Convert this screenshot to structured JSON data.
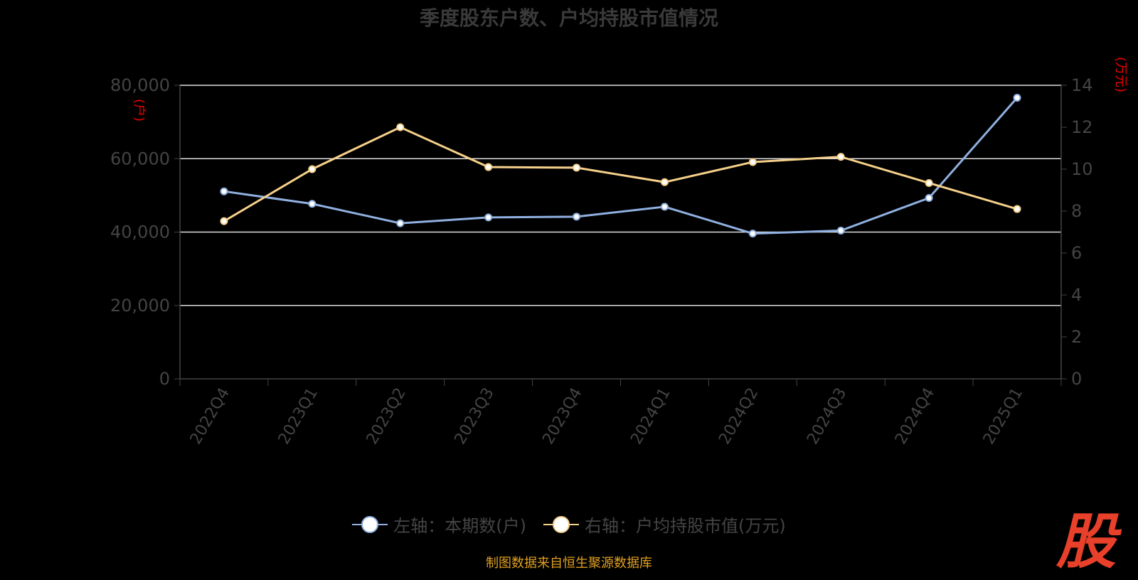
{
  "title": "季度股东户数、户均持股市值情况",
  "logo": "股",
  "source": "制图数据来自恒生聚源数据库",
  "legend": [
    {
      "label": "左轴：本期数(户)",
      "color": "#8fb0e0"
    },
    {
      "label": "右轴：户均持股市值(万元)",
      "color": "#f5d08a"
    }
  ],
  "chart_data": {
    "type": "line",
    "title": "季度股东户数、户均持股市值情况",
    "categories": [
      "2022Q4",
      "2023Q1",
      "2023Q2",
      "2023Q3",
      "2023Q4",
      "2024Q1",
      "2024Q2",
      "2024Q3",
      "2024Q4",
      "2025Q1"
    ],
    "left_axis": {
      "unit": "(户)",
      "ylim": [
        0,
        80000
      ],
      "ticks": [
        "0",
        "20,000",
        "40,000",
        "60,000",
        "80,000"
      ],
      "tick_values": [
        0,
        20000,
        40000,
        60000,
        80000
      ]
    },
    "right_axis": {
      "unit": "(万元)",
      "ylim": [
        0,
        14
      ],
      "ticks": [
        "0",
        "2",
        "4",
        "6",
        "8",
        "10",
        "12",
        "14"
      ],
      "tick_values": [
        0,
        2,
        4,
        6,
        8,
        10,
        12,
        14
      ]
    },
    "series": [
      {
        "name": "左轴：本期数(户)",
        "axis": "left",
        "color": "#8fb0e0",
        "values": [
          51100,
          47700,
          42400,
          44000,
          44200,
          46900,
          39600,
          40400,
          49300,
          76600
        ]
      },
      {
        "name": "右轴：户均持股市值(万元)",
        "axis": "right",
        "color": "#f5d08a",
        "values": [
          7.52,
          10.0,
          12.0,
          10.1,
          10.07,
          9.38,
          10.34,
          10.59,
          9.34,
          8.1
        ]
      }
    ],
    "grid": true,
    "legend_position": "bottom"
  }
}
